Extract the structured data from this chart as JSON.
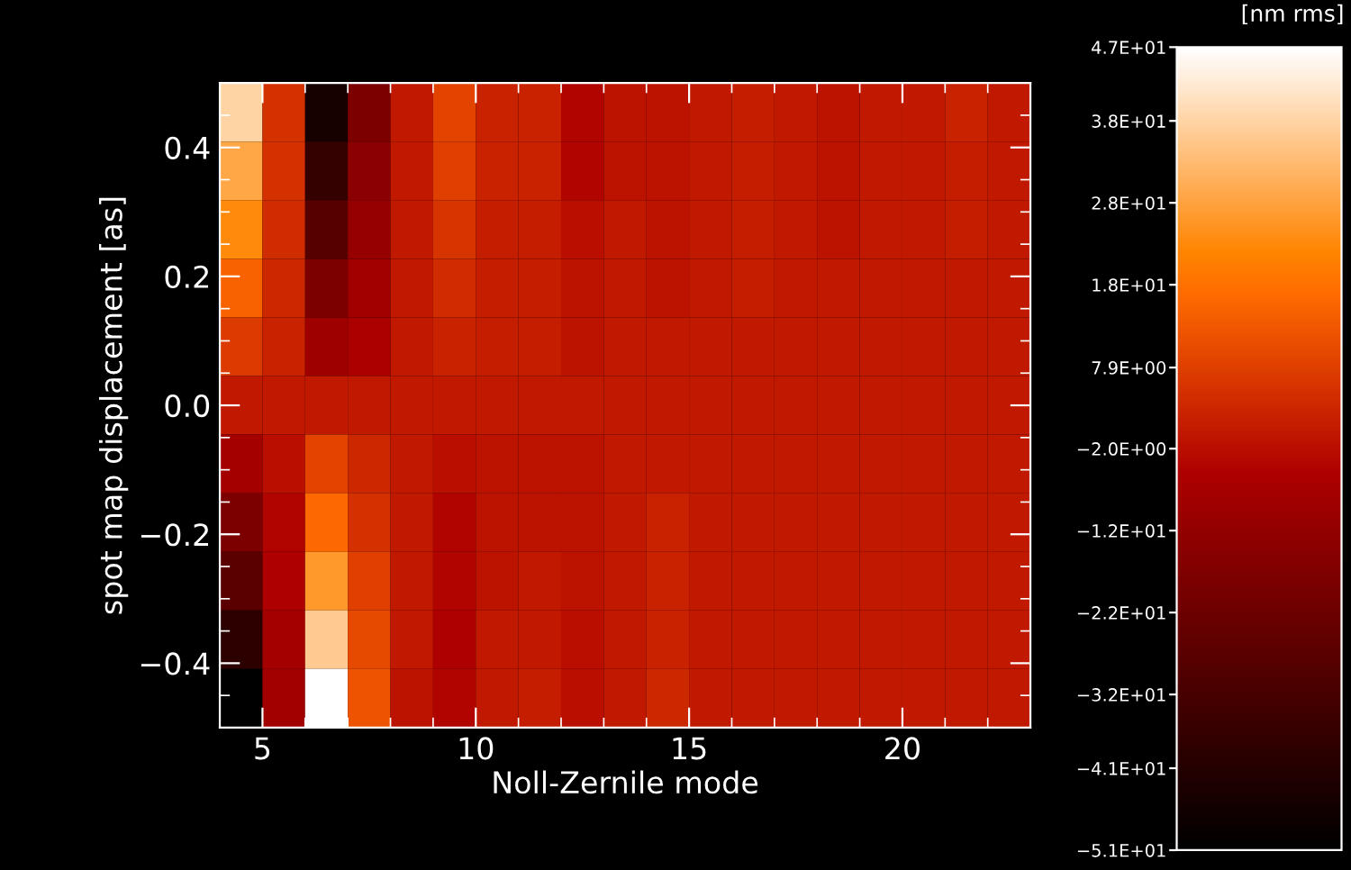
{
  "chart_data": {
    "type": "heatmap",
    "xlabel": "Noll-Zernile mode",
    "ylabel": "spot map displacement [as]",
    "clabel": "[nm rms]",
    "x": [
      4.5,
      5.5,
      6.5,
      7.5,
      8.5,
      9.5,
      10.5,
      11.5,
      12.5,
      13.5,
      14.5,
      15.5,
      16.5,
      17.5,
      18.5,
      19.5,
      20.5,
      21.5,
      22.5
    ],
    "y": [
      0.4545,
      0.3636,
      0.2727,
      0.1818,
      0.0909,
      0,
      -0.0909,
      -0.1818,
      -0.2727,
      -0.3636,
      -0.4545
    ],
    "cells": [
      [
        38,
        5,
        -45,
        -18,
        0,
        9,
        2,
        2,
        -4,
        -1,
        -1,
        0,
        1,
        0,
        -1,
        0,
        0,
        2,
        0
      ],
      [
        29,
        5,
        -37,
        -14,
        0,
        8,
        2,
        2,
        -4,
        -1,
        -1,
        0,
        1,
        0,
        -1,
        0,
        0,
        1,
        0
      ],
      [
        23,
        4,
        -28,
        -11,
        0,
        6,
        1,
        1,
        -2,
        0,
        -1,
        0,
        1,
        0,
        -1,
        0,
        0,
        1,
        0
      ],
      [
        15,
        3,
        -18,
        -8,
        0,
        4,
        1,
        1,
        -1,
        0,
        -1,
        0,
        1,
        0,
        0,
        0,
        0,
        0,
        0
      ],
      [
        7,
        2,
        -9,
        -6,
        0,
        2,
        1,
        1,
        -1,
        0,
        0,
        0,
        0,
        0,
        0,
        0,
        0,
        0,
        0
      ],
      [
        0,
        0,
        0,
        0,
        0,
        0,
        0,
        0,
        0,
        0,
        0,
        0,
        0,
        0,
        0,
        0,
        0,
        0,
        0
      ],
      [
        -7,
        -2,
        9,
        3,
        0,
        -2,
        -1,
        -1,
        -1,
        0,
        0,
        0,
        0,
        0,
        0,
        0,
        0,
        0,
        0
      ],
      [
        -18,
        -4,
        16,
        5,
        0,
        -4,
        -1,
        -1,
        -1,
        0,
        2,
        0,
        0,
        0,
        0,
        0,
        0,
        0,
        0
      ],
      [
        -27,
        -5,
        26,
        8,
        0,
        -4,
        -1,
        0,
        -1,
        0,
        2,
        0,
        0,
        0,
        0,
        0,
        0,
        0,
        0
      ],
      [
        -39,
        -7,
        36,
        10,
        0,
        -5,
        0,
        0,
        -2,
        0,
        2,
        0,
        0,
        0,
        0,
        0,
        0,
        0,
        0
      ],
      [
        -51,
        -8,
        47,
        12,
        -1,
        -4,
        0,
        1,
        -2,
        0,
        3,
        0,
        0,
        0,
        0,
        0,
        0,
        0,
        0
      ]
    ],
    "xlim": [
      4,
      23
    ],
    "ylim": [
      -0.5,
      0.5
    ],
    "xticks": [
      5,
      10,
      15,
      20
    ],
    "yticks": [
      {
        "value": -0.4,
        "label": "−0.4"
      },
      {
        "value": -0.2,
        "label": "−0.2"
      },
      {
        "value": 0,
        "label": "0.0"
      },
      {
        "value": 0.2,
        "label": "0.2"
      },
      {
        "value": 0.4,
        "label": "0.4"
      }
    ],
    "clim": [
      -51,
      47
    ],
    "cticks": [
      {
        "value": -51,
        "label": "−5.1E+01"
      },
      {
        "value": -41,
        "label": "−4.1E+01"
      },
      {
        "value": -32,
        "label": "−3.2E+01"
      },
      {
        "value": -22,
        "label": "−2.2E+01"
      },
      {
        "value": -12,
        "label": "−1.2E+01"
      },
      {
        "value": -2,
        "label": "−2.0E+00"
      },
      {
        "value": 7.9,
        "label": "7.9E+00"
      },
      {
        "value": 18,
        "label": "1.8E+01"
      },
      {
        "value": 28,
        "label": "2.8E+01"
      },
      {
        "value": 38,
        "label": "3.8E+01"
      },
      {
        "value": 47,
        "label": "4.7E+01"
      }
    ],
    "grid": false
  }
}
